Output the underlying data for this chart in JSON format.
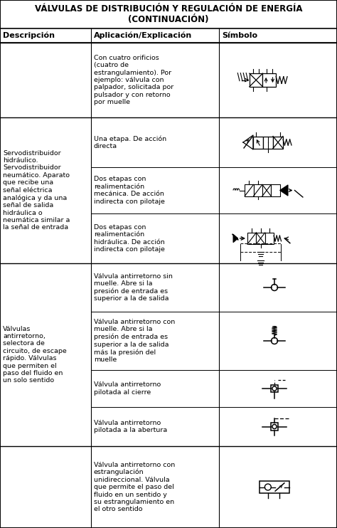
{
  "title_line1": "VÁLVULAS DE DISTRIBUCIÓN Y REGULACIÓN DE ENERGÍA",
  "title_line2": "(CONTINUACIÓN)",
  "col_headers": [
    "Descripción",
    "Aplicación/Explicación",
    "Símbolo"
  ],
  "background": "#ffffff",
  "rows": [
    {
      "desc": "",
      "app": "Con cuatro orificios\n(cuatro de\nestrangulamiento). Por\nejemplo: válvula con\npalpador, solicitada por\npulsador y con retorno\npor muelle",
      "symbol_id": "valve_4port"
    },
    {
      "desc": "Servodistribuidor\nhidráulico.\nServodistribuidor\nneumático. Aparato\nque recibe una\nseñal eléctrica\nanalógica y da una\nseñal de salida\nhidráulica o\nneumática similar a\nla señal de entrada",
      "app": "Una etapa. De acción\ndirecta",
      "symbol_id": "servo_1stage"
    },
    {
      "desc": "",
      "app": "Dos etapas con\nrealimentación\nmecánica. De acción\nindirecta con pilotaje",
      "symbol_id": "servo_2stage_mech"
    },
    {
      "desc": "",
      "app": "Dos etapas con\nrealimentación\nhidráulica. De acción\nindirecta con pilotaje",
      "symbol_id": "servo_2stage_hyd"
    },
    {
      "desc": "Válvulas\nantirretorno,\nselectora de\ncircuito, de escape\nrápido. Válvulas\nque permiten el\npaso del fluido en\nun solo sentido",
      "app": "Válvula antirretorno sin\nmuelle. Abre si la\npresión de entrada es\nsuperior a la de salida",
      "symbol_id": "check_no_spring"
    },
    {
      "desc": "",
      "app": "Válvula antirretorno con\nmuelle. Abre si la\npresión de entrada es\nsuperior a la de salida\nmás la presión del\nmuelle",
      "symbol_id": "check_spring"
    },
    {
      "desc": "",
      "app": "Válvula antirretorno\npilotada al cierre",
      "symbol_id": "check_pilot_close"
    },
    {
      "desc": "",
      "app": "Válvula antirretorno\npilotada a la abertura",
      "symbol_id": "check_pilot_open"
    },
    {
      "desc": "",
      "app": "Válvula antirretorno con\nestrangulación\nunidireccional. Válvula\nque permite el paso del\nfluido en un sentido y\nsu estrangulamiento en\nel otro sentido",
      "symbol_id": "check_throttle"
    }
  ],
  "groups": [
    {
      "rows": [
        0
      ],
      "desc": ""
    },
    {
      "rows": [
        1,
        2,
        3
      ],
      "desc": "Servodistribuidor\nhidráulico.\nServodistribuidor\nneumático. Aparato\nque recibe una\nseñal eléctrica\nanalógica y da una\nseñal de salida\nhidráulica o\nneumática similar a\nla señal de entrada"
    },
    {
      "rows": [
        4,
        5,
        6,
        7
      ],
      "desc": "Válvulas\nantirretorno,\nselectora de\ncircuito, de escape\nrápido. Válvulas\nque permiten el\npaso del fluido en\nun solo sentido"
    },
    {
      "rows": [
        8
      ],
      "desc": ""
    }
  ]
}
